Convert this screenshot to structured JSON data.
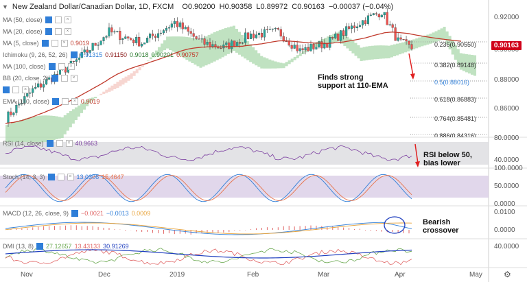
{
  "header": {
    "symbol": "New Zealand Dollar/Canadian Dollar, 1D, FXCM",
    "open": "O0.90200",
    "high": "H0.90358",
    "low": "L0.89972",
    "close": "C0.90163",
    "change": "−0.00037 (−0.04%)"
  },
  "indicators": {
    "ma50": {
      "name": "MA (50, close)"
    },
    "ma20": {
      "name": "MA (20, close)"
    },
    "ma5": {
      "name": "MA (5, close)",
      "value": "0.9019"
    },
    "ichimoku": {
      "name": "Ichimoku (9, 26, 52, 26)",
      "v1": "0.91315",
      "v2": "0.91150",
      "v3": "0.9018",
      "v4": "0.90201",
      "v5": "0.90757"
    },
    "ma100": {
      "name": "MA (100, close)"
    },
    "bb": {
      "name": "BB (20, close, 2)"
    },
    "ema110": {
      "name": "EMA (110, close)",
      "value": "0.9019"
    }
  },
  "price_axis": {
    "ticks": [
      "0.92000",
      "0.90000",
      "0.88000",
      "0.86000"
    ],
    "current": "0.90163"
  },
  "fib_levels": [
    {
      "label": "0.236(0.90550)",
      "blue": false
    },
    {
      "label": "0.382(0.89148)",
      "blue": false
    },
    {
      "label": "0.5(0.88016)",
      "blue": true
    },
    {
      "label": "0.618(0.86883)",
      "blue": false
    },
    {
      "label": "0.764(0.85481)",
      "blue": false
    },
    {
      "label": "0.886(0.84316)",
      "blue": false
    }
  ],
  "annotations": {
    "support": [
      "Finds strong",
      "support at 110-EMA"
    ],
    "rsi": [
      "RSI below 50,",
      "bias lower"
    ],
    "macd": [
      "Bearish",
      "crossover"
    ]
  },
  "rsi": {
    "name": "RSI (14, close)",
    "value": "40.9663",
    "ticks": [
      "80.0000",
      "40.0000"
    ]
  },
  "stoch": {
    "name": "Stoch (14, 3, 3)",
    "k": "13.0306",
    "d": "15.4647",
    "ticks": [
      "100.0000",
      "50.0000",
      "0.0000"
    ]
  },
  "macd": {
    "name": "MACD (12, 26, close, 9)",
    "v1": "−0.0021",
    "v2": "−0.0013",
    "v3": "0.0009",
    "ticks": [
      "0.0100",
      "0.0000"
    ]
  },
  "dmi": {
    "name": "DMI (13, 8)",
    "v1": "27.12657",
    "v2": "13.43133",
    "v3": "30.91269",
    "ticks": [
      "40.0000"
    ]
  },
  "x_axis": [
    "Nov",
    "Dec",
    "2019",
    "Feb",
    "Mar",
    "Apr",
    "May"
  ],
  "colors": {
    "up": "#26a69a",
    "down": "#ef5350",
    "ema": "#c0392b",
    "cloud_green": "#a5d6a7",
    "cloud_red": "#f3c4bd",
    "rsi_line": "#7b3fa0",
    "stoch_k": "#2f7ed8",
    "stoch_d": "#e8734a",
    "dmi_plus": "#6aa84f",
    "dmi_minus": "#e06666",
    "adx": "#1f3fbf",
    "arrow": "#e02020"
  }
}
